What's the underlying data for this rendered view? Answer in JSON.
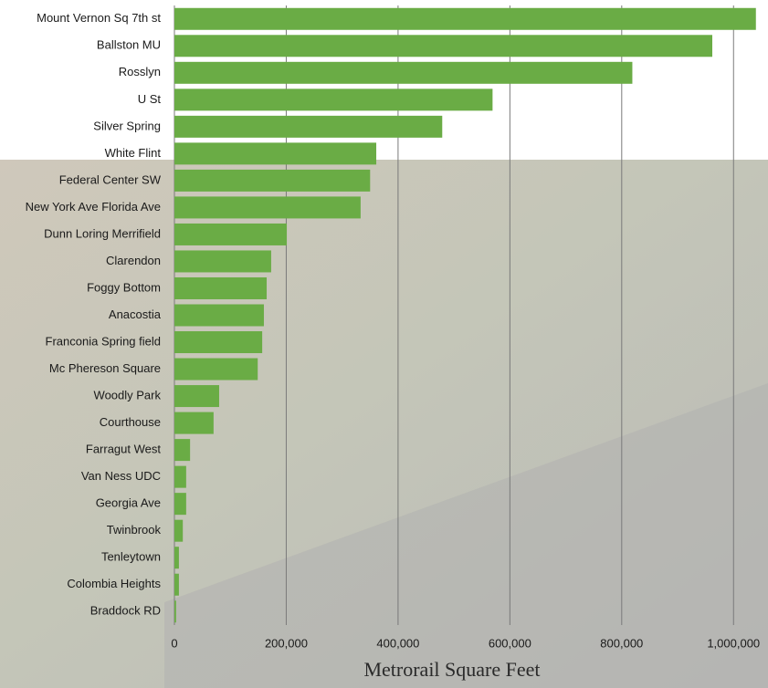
{
  "chart_data": {
    "type": "barh",
    "x_label": "Metrorail Square Feet",
    "categories": [
      "Mount Vernon Sq 7th st",
      "Ballston MU",
      "Rosslyn",
      "U St",
      "Silver Spring",
      "White Flint",
      "Federal Center SW",
      "New York Ave Florida Ave",
      "Dunn Loring Merrifield",
      "Clarendon",
      "Foggy Bottom",
      "Anacostia",
      "Franconia Spring field",
      "Mc Phereson Square",
      "Woodly Park",
      "Courthouse",
      "Farragut West",
      "Van Ness UDC",
      "Georgia Ave",
      "Twinbrook",
      "Tenleytown",
      "Colombia Heights",
      "Braddock RD"
    ],
    "values": [
      1040000,
      962000,
      819000,
      569000,
      479000,
      361000,
      350000,
      333000,
      201000,
      173000,
      165000,
      160000,
      157000,
      149000,
      80000,
      70000,
      28000,
      21000,
      21000,
      15000,
      8000,
      8000,
      3000
    ],
    "color": "#6aac45",
    "xlim": [
      0,
      1060000
    ],
    "xticks": [
      0,
      {
        "value": 200000,
        "label": "200,000"
      },
      {
        "value": 400000,
        "label": "400,000"
      },
      {
        "value": 600000,
        "label": "600,000"
      },
      {
        "value": 800000,
        "label": "800,000"
      },
      {
        "value": 1000000,
        "label": "1,000,000"
      }
    ],
    "grid": true
  }
}
